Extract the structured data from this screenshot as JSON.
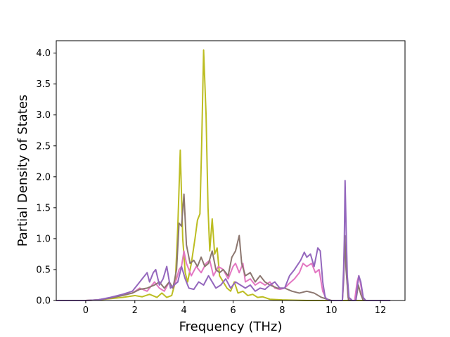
{
  "chart_data": {
    "type": "line",
    "title": "",
    "xlabel": "Frequency (THz)",
    "ylabel": "Partial Density of States",
    "xlim": [
      -1.2,
      13.0
    ],
    "ylim": [
      0.0,
      4.2
    ],
    "xticks": [
      0,
      2,
      4,
      6,
      8,
      10,
      12
    ],
    "yticks": [
      0.0,
      0.5,
      1.0,
      1.5,
      2.0,
      2.5,
      3.0,
      3.5,
      4.0
    ],
    "grid": false,
    "legend": "none",
    "series": [
      {
        "color": "#bcbd22",
        "points": [
          [
            -1.2,
            0
          ],
          [
            0,
            0
          ],
          [
            0.5,
            0.01
          ],
          [
            1.0,
            0.03
          ],
          [
            1.5,
            0.05
          ],
          [
            2.0,
            0.08
          ],
          [
            2.3,
            0.06
          ],
          [
            2.6,
            0.1
          ],
          [
            2.9,
            0.05
          ],
          [
            3.1,
            0.12
          ],
          [
            3.3,
            0.05
          ],
          [
            3.5,
            0.08
          ],
          [
            3.65,
            0.3
          ],
          [
            3.75,
            1.2
          ],
          [
            3.85,
            2.43
          ],
          [
            3.95,
            1.0
          ],
          [
            4.05,
            0.45
          ],
          [
            4.15,
            0.3
          ],
          [
            4.3,
            0.6
          ],
          [
            4.45,
            1.0
          ],
          [
            4.55,
            1.3
          ],
          [
            4.65,
            1.4
          ],
          [
            4.72,
            2.5
          ],
          [
            4.8,
            4.05
          ],
          [
            4.9,
            3.0
          ],
          [
            4.98,
            1.5
          ],
          [
            5.05,
            0.8
          ],
          [
            5.15,
            1.32
          ],
          [
            5.25,
            0.75
          ],
          [
            5.35,
            0.85
          ],
          [
            5.45,
            0.4
          ],
          [
            5.6,
            0.3
          ],
          [
            5.75,
            0.2
          ],
          [
            5.9,
            0.15
          ],
          [
            6.05,
            0.3
          ],
          [
            6.2,
            0.12
          ],
          [
            6.4,
            0.15
          ],
          [
            6.6,
            0.08
          ],
          [
            6.8,
            0.1
          ],
          [
            7.0,
            0.05
          ],
          [
            7.2,
            0.06
          ],
          [
            7.5,
            0.02
          ],
          [
            8.0,
            0.01
          ],
          [
            9.0,
            0
          ],
          [
            12.4,
            0
          ]
        ]
      },
      {
        "color": "#e377c2",
        "points": [
          [
            -1.2,
            0
          ],
          [
            0,
            0
          ],
          [
            0.5,
            0.01
          ],
          [
            1.0,
            0.04
          ],
          [
            1.5,
            0.09
          ],
          [
            1.9,
            0.12
          ],
          [
            2.2,
            0.2
          ],
          [
            2.5,
            0.15
          ],
          [
            2.8,
            0.3
          ],
          [
            3.0,
            0.2
          ],
          [
            3.2,
            0.15
          ],
          [
            3.4,
            0.3
          ],
          [
            3.55,
            0.2
          ],
          [
            3.7,
            0.35
          ],
          [
            3.8,
            0.5
          ],
          [
            3.9,
            0.55
          ],
          [
            4.0,
            0.8
          ],
          [
            4.1,
            0.6
          ],
          [
            4.3,
            0.4
          ],
          [
            4.5,
            0.55
          ],
          [
            4.7,
            0.45
          ],
          [
            4.9,
            0.6
          ],
          [
            5.05,
            0.65
          ],
          [
            5.2,
            0.4
          ],
          [
            5.4,
            0.55
          ],
          [
            5.6,
            0.5
          ],
          [
            5.8,
            0.35
          ],
          [
            6.0,
            0.55
          ],
          [
            6.1,
            0.6
          ],
          [
            6.25,
            0.45
          ],
          [
            6.4,
            0.6
          ],
          [
            6.5,
            0.3
          ],
          [
            6.7,
            0.35
          ],
          [
            6.9,
            0.25
          ],
          [
            7.1,
            0.3
          ],
          [
            7.3,
            0.25
          ],
          [
            7.5,
            0.3
          ],
          [
            7.7,
            0.2
          ],
          [
            7.9,
            0.18
          ],
          [
            8.1,
            0.2
          ],
          [
            8.3,
            0.28
          ],
          [
            8.5,
            0.35
          ],
          [
            8.7,
            0.45
          ],
          [
            8.85,
            0.6
          ],
          [
            9.0,
            0.55
          ],
          [
            9.2,
            0.6
          ],
          [
            9.35,
            0.45
          ],
          [
            9.5,
            0.5
          ],
          [
            9.65,
            0.15
          ],
          [
            9.8,
            0.02
          ],
          [
            10.0,
            0
          ],
          [
            10.45,
            0
          ],
          [
            10.5,
            0.3
          ],
          [
            10.55,
            1.0
          ],
          [
            10.6,
            0.6
          ],
          [
            10.68,
            0.05
          ],
          [
            10.8,
            0
          ],
          [
            10.95,
            0
          ],
          [
            11.05,
            0.3
          ],
          [
            11.12,
            0.4
          ],
          [
            11.2,
            0.25
          ],
          [
            11.3,
            0
          ],
          [
            12.4,
            0
          ]
        ]
      },
      {
        "color": "#8c7770",
        "points": [
          [
            -1.2,
            0
          ],
          [
            0,
            0
          ],
          [
            0.5,
            0.01
          ],
          [
            1.0,
            0.04
          ],
          [
            1.5,
            0.08
          ],
          [
            1.9,
            0.12
          ],
          [
            2.2,
            0.18
          ],
          [
            2.5,
            0.2
          ],
          [
            2.8,
            0.25
          ],
          [
            3.0,
            0.3
          ],
          [
            3.2,
            0.2
          ],
          [
            3.4,
            0.3
          ],
          [
            3.55,
            0.2
          ],
          [
            3.7,
            0.5
          ],
          [
            3.8,
            1.25
          ],
          [
            3.9,
            1.2
          ],
          [
            4.0,
            1.72
          ],
          [
            4.1,
            0.9
          ],
          [
            4.25,
            0.6
          ],
          [
            4.4,
            0.65
          ],
          [
            4.55,
            0.55
          ],
          [
            4.7,
            0.7
          ],
          [
            4.85,
            0.55
          ],
          [
            5.0,
            0.6
          ],
          [
            5.15,
            0.8
          ],
          [
            5.3,
            0.5
          ],
          [
            5.45,
            0.45
          ],
          [
            5.6,
            0.5
          ],
          [
            5.8,
            0.4
          ],
          [
            5.95,
            0.7
          ],
          [
            6.1,
            0.8
          ],
          [
            6.25,
            1.05
          ],
          [
            6.35,
            0.6
          ],
          [
            6.5,
            0.4
          ],
          [
            6.7,
            0.45
          ],
          [
            6.9,
            0.3
          ],
          [
            7.1,
            0.4
          ],
          [
            7.3,
            0.3
          ],
          [
            7.5,
            0.25
          ],
          [
            7.8,
            0.2
          ],
          [
            8.1,
            0.2
          ],
          [
            8.4,
            0.15
          ],
          [
            8.7,
            0.12
          ],
          [
            9.0,
            0.15
          ],
          [
            9.3,
            0.12
          ],
          [
            9.6,
            0.05
          ],
          [
            10.0,
            0
          ],
          [
            10.45,
            0
          ],
          [
            10.5,
            0.35
          ],
          [
            10.55,
            1.05
          ],
          [
            10.6,
            0.5
          ],
          [
            10.7,
            0
          ],
          [
            11.0,
            0
          ],
          [
            11.1,
            0.25
          ],
          [
            11.2,
            0.1
          ],
          [
            11.3,
            0
          ],
          [
            12.4,
            0
          ]
        ]
      },
      {
        "color": "#9467bd",
        "points": [
          [
            -1.2,
            0
          ],
          [
            0,
            0
          ],
          [
            0.5,
            0.01
          ],
          [
            1.0,
            0.05
          ],
          [
            1.5,
            0.1
          ],
          [
            1.9,
            0.15
          ],
          [
            2.1,
            0.25
          ],
          [
            2.3,
            0.35
          ],
          [
            2.5,
            0.45
          ],
          [
            2.6,
            0.3
          ],
          [
            2.75,
            0.45
          ],
          [
            2.85,
            0.5
          ],
          [
            3.0,
            0.25
          ],
          [
            3.15,
            0.35
          ],
          [
            3.3,
            0.55
          ],
          [
            3.45,
            0.2
          ],
          [
            3.6,
            0.25
          ],
          [
            3.75,
            0.3
          ],
          [
            3.9,
            0.55
          ],
          [
            4.05,
            0.35
          ],
          [
            4.2,
            0.2
          ],
          [
            4.4,
            0.18
          ],
          [
            4.6,
            0.3
          ],
          [
            4.8,
            0.25
          ],
          [
            5.0,
            0.4
          ],
          [
            5.15,
            0.3
          ],
          [
            5.3,
            0.2
          ],
          [
            5.5,
            0.25
          ],
          [
            5.7,
            0.35
          ],
          [
            5.9,
            0.2
          ],
          [
            6.1,
            0.3
          ],
          [
            6.3,
            0.25
          ],
          [
            6.5,
            0.2
          ],
          [
            6.7,
            0.25
          ],
          [
            6.9,
            0.15
          ],
          [
            7.1,
            0.2
          ],
          [
            7.3,
            0.18
          ],
          [
            7.5,
            0.25
          ],
          [
            7.7,
            0.3
          ],
          [
            7.9,
            0.2
          ],
          [
            8.1,
            0.2
          ],
          [
            8.3,
            0.4
          ],
          [
            8.5,
            0.5
          ],
          [
            8.75,
            0.65
          ],
          [
            8.9,
            0.78
          ],
          [
            9.0,
            0.7
          ],
          [
            9.15,
            0.75
          ],
          [
            9.3,
            0.55
          ],
          [
            9.45,
            0.85
          ],
          [
            9.55,
            0.8
          ],
          [
            9.65,
            0.3
          ],
          [
            9.75,
            0.05
          ],
          [
            9.9,
            0
          ],
          [
            10.45,
            0
          ],
          [
            10.5,
            0.5
          ],
          [
            10.53,
            1.0
          ],
          [
            10.56,
            1.94
          ],
          [
            10.6,
            1.2
          ],
          [
            10.65,
            0.4
          ],
          [
            10.72,
            0.05
          ],
          [
            10.85,
            0
          ],
          [
            11.0,
            0
          ],
          [
            11.05,
            0.2
          ],
          [
            11.12,
            0.4
          ],
          [
            11.2,
            0.3
          ],
          [
            11.3,
            0.05
          ],
          [
            11.4,
            0
          ],
          [
            12.4,
            0
          ]
        ]
      }
    ]
  }
}
